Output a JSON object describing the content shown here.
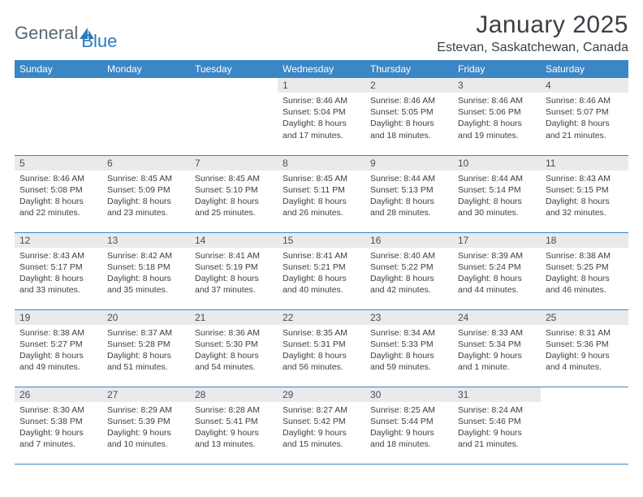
{
  "logo": {
    "text1": "General",
    "text2": "Blue",
    "shape_color": "#2b7bbf"
  },
  "title": "January 2025",
  "location": "Estevan, Saskatchewan, Canada",
  "colors": {
    "header_bg": "#3b86c4",
    "header_text": "#ffffff",
    "daynum_bg": "#e8eaec",
    "text": "#3a3f44",
    "rule": "#3b86c4"
  },
  "weekdays": [
    "Sunday",
    "Monday",
    "Tuesday",
    "Wednesday",
    "Thursday",
    "Friday",
    "Saturday"
  ],
  "weeks": [
    [
      {
        "n": "",
        "sr": "",
        "ss": "",
        "dl": ""
      },
      {
        "n": "",
        "sr": "",
        "ss": "",
        "dl": ""
      },
      {
        "n": "",
        "sr": "",
        "ss": "",
        "dl": ""
      },
      {
        "n": "1",
        "sr": "Sunrise: 8:46 AM",
        "ss": "Sunset: 5:04 PM",
        "dl": "Daylight: 8 hours and 17 minutes."
      },
      {
        "n": "2",
        "sr": "Sunrise: 8:46 AM",
        "ss": "Sunset: 5:05 PM",
        "dl": "Daylight: 8 hours and 18 minutes."
      },
      {
        "n": "3",
        "sr": "Sunrise: 8:46 AM",
        "ss": "Sunset: 5:06 PM",
        "dl": "Daylight: 8 hours and 19 minutes."
      },
      {
        "n": "4",
        "sr": "Sunrise: 8:46 AM",
        "ss": "Sunset: 5:07 PM",
        "dl": "Daylight: 8 hours and 21 minutes."
      }
    ],
    [
      {
        "n": "5",
        "sr": "Sunrise: 8:46 AM",
        "ss": "Sunset: 5:08 PM",
        "dl": "Daylight: 8 hours and 22 minutes."
      },
      {
        "n": "6",
        "sr": "Sunrise: 8:45 AM",
        "ss": "Sunset: 5:09 PM",
        "dl": "Daylight: 8 hours and 23 minutes."
      },
      {
        "n": "7",
        "sr": "Sunrise: 8:45 AM",
        "ss": "Sunset: 5:10 PM",
        "dl": "Daylight: 8 hours and 25 minutes."
      },
      {
        "n": "8",
        "sr": "Sunrise: 8:45 AM",
        "ss": "Sunset: 5:11 PM",
        "dl": "Daylight: 8 hours and 26 minutes."
      },
      {
        "n": "9",
        "sr": "Sunrise: 8:44 AM",
        "ss": "Sunset: 5:13 PM",
        "dl": "Daylight: 8 hours and 28 minutes."
      },
      {
        "n": "10",
        "sr": "Sunrise: 8:44 AM",
        "ss": "Sunset: 5:14 PM",
        "dl": "Daylight: 8 hours and 30 minutes."
      },
      {
        "n": "11",
        "sr": "Sunrise: 8:43 AM",
        "ss": "Sunset: 5:15 PM",
        "dl": "Daylight: 8 hours and 32 minutes."
      }
    ],
    [
      {
        "n": "12",
        "sr": "Sunrise: 8:43 AM",
        "ss": "Sunset: 5:17 PM",
        "dl": "Daylight: 8 hours and 33 minutes."
      },
      {
        "n": "13",
        "sr": "Sunrise: 8:42 AM",
        "ss": "Sunset: 5:18 PM",
        "dl": "Daylight: 8 hours and 35 minutes."
      },
      {
        "n": "14",
        "sr": "Sunrise: 8:41 AM",
        "ss": "Sunset: 5:19 PM",
        "dl": "Daylight: 8 hours and 37 minutes."
      },
      {
        "n": "15",
        "sr": "Sunrise: 8:41 AM",
        "ss": "Sunset: 5:21 PM",
        "dl": "Daylight: 8 hours and 40 minutes."
      },
      {
        "n": "16",
        "sr": "Sunrise: 8:40 AM",
        "ss": "Sunset: 5:22 PM",
        "dl": "Daylight: 8 hours and 42 minutes."
      },
      {
        "n": "17",
        "sr": "Sunrise: 8:39 AM",
        "ss": "Sunset: 5:24 PM",
        "dl": "Daylight: 8 hours and 44 minutes."
      },
      {
        "n": "18",
        "sr": "Sunrise: 8:38 AM",
        "ss": "Sunset: 5:25 PM",
        "dl": "Daylight: 8 hours and 46 minutes."
      }
    ],
    [
      {
        "n": "19",
        "sr": "Sunrise: 8:38 AM",
        "ss": "Sunset: 5:27 PM",
        "dl": "Daylight: 8 hours and 49 minutes."
      },
      {
        "n": "20",
        "sr": "Sunrise: 8:37 AM",
        "ss": "Sunset: 5:28 PM",
        "dl": "Daylight: 8 hours and 51 minutes."
      },
      {
        "n": "21",
        "sr": "Sunrise: 8:36 AM",
        "ss": "Sunset: 5:30 PM",
        "dl": "Daylight: 8 hours and 54 minutes."
      },
      {
        "n": "22",
        "sr": "Sunrise: 8:35 AM",
        "ss": "Sunset: 5:31 PM",
        "dl": "Daylight: 8 hours and 56 minutes."
      },
      {
        "n": "23",
        "sr": "Sunrise: 8:34 AM",
        "ss": "Sunset: 5:33 PM",
        "dl": "Daylight: 8 hours and 59 minutes."
      },
      {
        "n": "24",
        "sr": "Sunrise: 8:33 AM",
        "ss": "Sunset: 5:34 PM",
        "dl": "Daylight: 9 hours and 1 minute."
      },
      {
        "n": "25",
        "sr": "Sunrise: 8:31 AM",
        "ss": "Sunset: 5:36 PM",
        "dl": "Daylight: 9 hours and 4 minutes."
      }
    ],
    [
      {
        "n": "26",
        "sr": "Sunrise: 8:30 AM",
        "ss": "Sunset: 5:38 PM",
        "dl": "Daylight: 9 hours and 7 minutes."
      },
      {
        "n": "27",
        "sr": "Sunrise: 8:29 AM",
        "ss": "Sunset: 5:39 PM",
        "dl": "Daylight: 9 hours and 10 minutes."
      },
      {
        "n": "28",
        "sr": "Sunrise: 8:28 AM",
        "ss": "Sunset: 5:41 PM",
        "dl": "Daylight: 9 hours and 13 minutes."
      },
      {
        "n": "29",
        "sr": "Sunrise: 8:27 AM",
        "ss": "Sunset: 5:42 PM",
        "dl": "Daylight: 9 hours and 15 minutes."
      },
      {
        "n": "30",
        "sr": "Sunrise: 8:25 AM",
        "ss": "Sunset: 5:44 PM",
        "dl": "Daylight: 9 hours and 18 minutes."
      },
      {
        "n": "31",
        "sr": "Sunrise: 8:24 AM",
        "ss": "Sunset: 5:46 PM",
        "dl": "Daylight: 9 hours and 21 minutes."
      },
      {
        "n": "",
        "sr": "",
        "ss": "",
        "dl": ""
      }
    ]
  ]
}
